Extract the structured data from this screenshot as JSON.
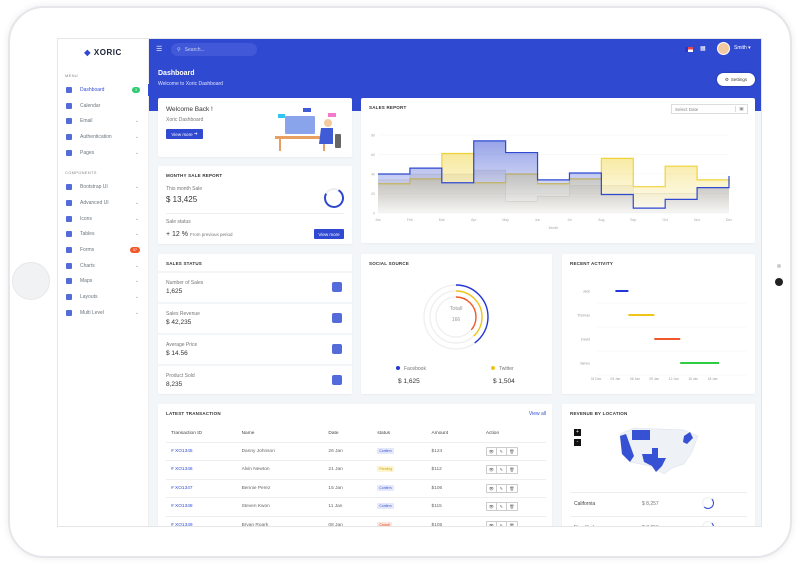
{
  "sidebar": {
    "logo": "XORIC",
    "menu_label": "MENU",
    "components_label": "COMPONENTS",
    "menu_items": [
      {
        "label": "Dashboard",
        "badge": "3",
        "badge_color": "#2ecc71",
        "active": true
      },
      {
        "label": "Calendar"
      },
      {
        "label": "Email",
        "chevron": true
      },
      {
        "label": "Authentication",
        "chevron": true
      },
      {
        "label": "Pages",
        "chevron": true
      }
    ],
    "component_items": [
      {
        "label": "Bootstrap UI",
        "chevron": true
      },
      {
        "label": "Advanced UI",
        "chevron": true
      },
      {
        "label": "Icons",
        "chevron": true
      },
      {
        "label": "Tables",
        "chevron": true
      },
      {
        "label": "Forms",
        "badge": "07",
        "badge_color": "#f1592a"
      },
      {
        "label": "Charts",
        "chevron": true
      },
      {
        "label": "Maps",
        "chevron": true
      },
      {
        "label": "Layouts",
        "chevron": true
      },
      {
        "label": "Multi Level",
        "chevron": true
      }
    ]
  },
  "header": {
    "search_placeholder": "Search...",
    "user": "Smith",
    "page_title": "Dashboard",
    "page_subtitle": "Welcome to Xoric Dashboard",
    "settings_label": "Settings"
  },
  "welcome": {
    "title": "Welcome Back !",
    "subtitle": "Xoric Dashboard",
    "button": "View more"
  },
  "monthly": {
    "title": "MONTHY SALE REPORT",
    "this_month_label": "This month Sale",
    "this_month_value": "$ 13,425",
    "status_label": "Sale status",
    "change": "+ 12 %",
    "change_note": "From previous period",
    "button": "View more"
  },
  "sales_status": {
    "title": "SALES STATUS",
    "rows": [
      {
        "label": "Number of Sales",
        "value": "1,625",
        "icon": "layers-icon"
      },
      {
        "label": "Sales Revenue",
        "value": "$ 42,235",
        "icon": "bar-chart-icon"
      },
      {
        "label": "Average Price",
        "value": "$ 14.56",
        "icon": "ticket-icon"
      },
      {
        "label": "Product Sold",
        "value": "8,235",
        "icon": "box-icon"
      }
    ]
  },
  "sales_report": {
    "title": "SALES REPORT",
    "date_placeholder": "Select Date"
  },
  "chart_data": {
    "type": "line",
    "step": true,
    "xlabel": "Month",
    "ylim": [
      0,
      80
    ],
    "yticks": [
      0,
      20,
      40,
      60,
      80
    ],
    "categories": [
      "Jan",
      "Feb",
      "Mar",
      "Apr",
      "May",
      "Jun",
      "Jul",
      "Aug",
      "Sep",
      "Oct",
      "Nov",
      "Dec"
    ],
    "series": [
      {
        "color": "#f0d33b",
        "values": [
          30,
          35,
          61,
          31,
          40,
          30,
          35,
          56,
          27,
          48,
          34,
          30
        ]
      },
      {
        "color": "#2f49d1",
        "values": [
          40,
          46,
          31,
          74,
          62,
          34,
          41,
          19,
          5,
          14,
          26,
          38
        ]
      },
      {
        "color": "#c9c3b3",
        "values": [
          34,
          40,
          40,
          44,
          12,
          17,
          28,
          28,
          20,
          20,
          26,
          30
        ]
      }
    ]
  },
  "social": {
    "title": "SOCIAL SOURCE",
    "total_label": "Totall",
    "total_value": "166",
    "sources": [
      {
        "name": "Facebook",
        "value": "$ 1,625",
        "color": "#2337d6"
      },
      {
        "name": "Twitter",
        "value": "$ 1,504",
        "color": "#f0c419"
      }
    ],
    "rings": [
      {
        "color": "#2337d6",
        "fraction": 0.4
      },
      {
        "color": "#f0c419",
        "fraction": 0.38
      },
      {
        "color": "#f1592a",
        "fraction": 0.36
      }
    ]
  },
  "activity": {
    "title": "RECENT ACTIVITY",
    "xticks": [
      "31 Dec",
      "03 Jan",
      "06 Jan",
      "09 Jan",
      "12 Jan",
      "15 Jan",
      "18 Jan"
    ],
    "rows": [
      {
        "name": "Jack",
        "start": 2,
        "end": 4,
        "color": "#2337d6"
      },
      {
        "name": "Thomas",
        "start": 4,
        "end": 8,
        "color": "#f0c419"
      },
      {
        "name": "David",
        "start": 8,
        "end": 12,
        "color": "#f1592a"
      },
      {
        "name": "James",
        "start": 12,
        "end": 18,
        "color": "#2ecc40"
      }
    ]
  },
  "transactions": {
    "title": "LATEST TRANSACTION",
    "view_all": "View all",
    "columns": [
      "Transaction ID",
      "Name",
      "Date",
      "status",
      "Amount",
      "Action"
    ],
    "rows": [
      {
        "id": "# XO1345",
        "name": "Danny Johnson",
        "date": "26 Jan",
        "status": "Confirm",
        "amount": "$124"
      },
      {
        "id": "# XO1346",
        "name": "Alvin Newton",
        "date": "21 Jan",
        "status": "Pending",
        "amount": "$112"
      },
      {
        "id": "# XO1347",
        "name": "Bennie Perez",
        "date": "15 Jan",
        "status": "Confirm",
        "amount": "$106"
      },
      {
        "id": "# XO1348",
        "name": "Steven Kwon",
        "date": "11 Jan",
        "status": "Confirm",
        "amount": "$115"
      },
      {
        "id": "# XO1349",
        "name": "Bryan Roark",
        "date": "08 Jan",
        "status": "Cancel",
        "amount": "$105"
      }
    ]
  },
  "revenue": {
    "title": "REVENUE BY LOCATION",
    "zoom_in": "+",
    "zoom_out": "-",
    "rows": [
      {
        "location": "California",
        "value": "$ 8,257"
      },
      {
        "location": "New York",
        "value": "$ 7,253"
      }
    ]
  }
}
